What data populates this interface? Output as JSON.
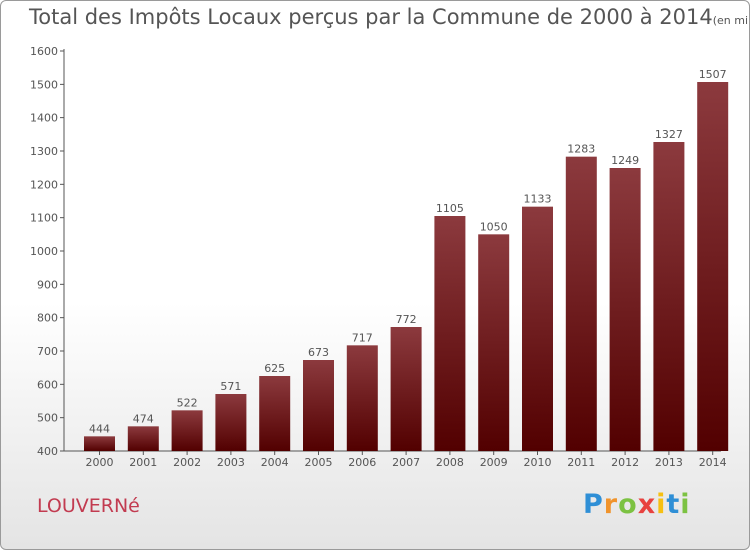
{
  "title": "Total des Impôts Locaux perçus par la Commune de 2000 à 2014",
  "unit_label": "(en milliers d'€)",
  "commune": "LOUVERNé",
  "logo": {
    "letters": [
      "P",
      "r",
      "o",
      "x",
      "i",
      "t",
      "i"
    ],
    "colors": [
      "#2f8fd6",
      "#f0932b",
      "#7cc242",
      "#e8423f",
      "#f6c012",
      "#2f8fd6",
      "#7cc242"
    ]
  },
  "colors": {
    "bar_top": "#8c3a3e",
    "bar_bottom": "#520000",
    "text": "#555555",
    "commune": "#c23b50"
  },
  "chart_data": {
    "type": "bar",
    "title": "Total des Impôts Locaux perçus par la Commune de 2000 à 2014",
    "xlabel": "",
    "ylabel": "",
    "categories": [
      "2000",
      "2001",
      "2002",
      "2003",
      "2004",
      "2005",
      "2006",
      "2007",
      "2008",
      "2009",
      "2010",
      "2011",
      "2012",
      "2013",
      "2014"
    ],
    "values": [
      444,
      474,
      522,
      571,
      625,
      673,
      717,
      772,
      1105,
      1050,
      1133,
      1283,
      1249,
      1327,
      1507
    ],
    "ylim": [
      400,
      1600
    ],
    "yticks": [
      400,
      500,
      600,
      700,
      800,
      900,
      1000,
      1100,
      1200,
      1300,
      1400,
      1500,
      1600
    ],
    "grid": false
  }
}
